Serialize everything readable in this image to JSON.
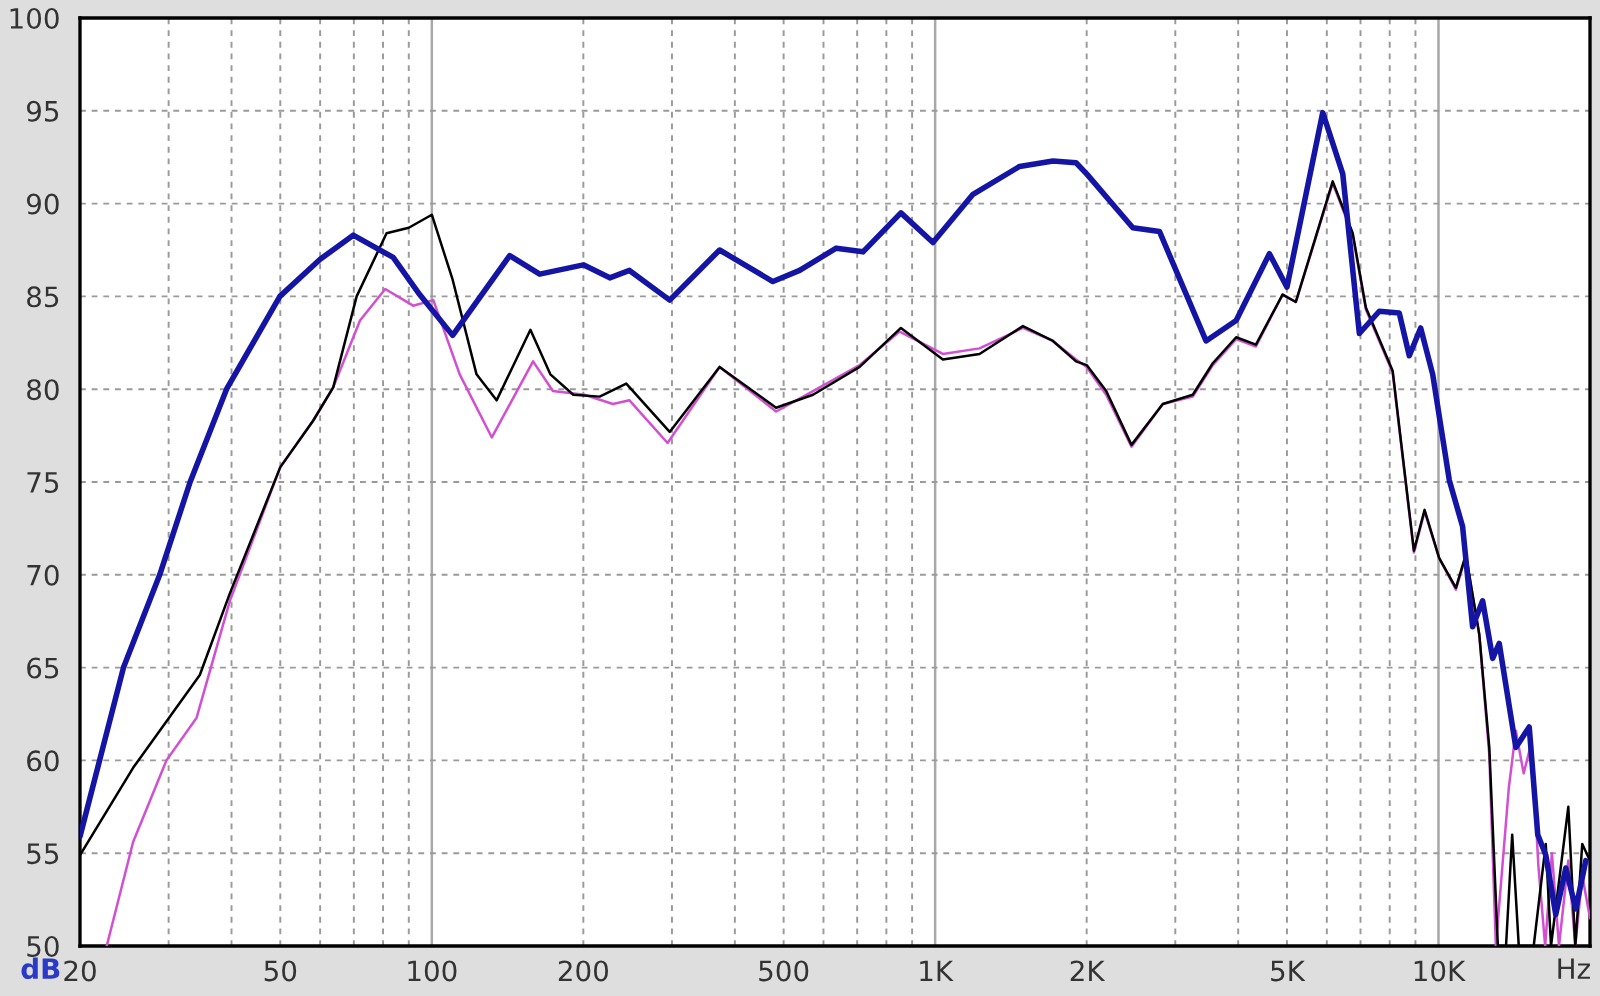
{
  "chart_data": {
    "type": "line",
    "xlabel": "Hz",
    "ylabel": "dB",
    "log": "x",
    "grid": true,
    "xlim": [
      20,
      20000
    ],
    "ylim": [
      50,
      100
    ],
    "xticks": [
      20,
      {
        "value": 30,
        "label": null
      },
      {
        "value": 40,
        "label": null
      },
      50,
      {
        "value": 60,
        "label": null
      },
      {
        "value": 70,
        "label": null
      },
      {
        "value": 80,
        "label": null
      },
      {
        "value": 90,
        "label": null
      },
      100,
      200,
      {
        "value": 300,
        "label": null
      },
      {
        "value": 400,
        "label": null
      },
      500,
      {
        "value": 600,
        "label": null
      },
      {
        "value": 700,
        "label": null
      },
      {
        "value": 800,
        "label": null
      },
      {
        "value": 900,
        "label": null
      },
      {
        "value": 1000,
        "label": "1K"
      },
      {
        "value": 2000,
        "label": "2K"
      },
      {
        "value": 3000,
        "label": null
      },
      {
        "value": 4000,
        "label": null
      },
      {
        "value": 5000,
        "label": "5K"
      },
      {
        "value": 6000,
        "label": null
      },
      {
        "value": 7000,
        "label": null
      },
      {
        "value": 8000,
        "label": null
      },
      {
        "value": 9000,
        "label": null
      },
      {
        "value": 10000,
        "label": "10K"
      }
    ],
    "yticks": [
      50,
      55,
      60,
      65,
      70,
      75,
      80,
      85,
      90,
      95,
      100
    ],
    "series": [
      {
        "color": "#d24fd2",
        "x": [
          22.6,
          25.5,
          29.7,
          34.1,
          39.7,
          50,
          58.1,
          63.7,
          72,
          80.8,
          91.8,
          100.7,
          113.6,
          131.6,
          158.9,
          174,
          201,
          229,
          247,
          294,
          373,
          483,
          572,
          708,
          850,
          1036,
          1225,
          1494,
          1714,
          1905,
          2000,
          2187,
          2455,
          2833,
          3250,
          3561,
          3963,
          4338,
          4901,
          5207,
          6164,
          6755,
          7173,
          8108,
          8937,
          9384,
          10032,
          10830,
          11335,
          12050,
          12617,
          13002,
          13793,
          14247,
          14764,
          15316,
          15795,
          16292,
          16801,
          17355,
          18111,
          18700,
          19305,
          20000
        ],
        "values": [
          50,
          55.6,
          60.0,
          62.3,
          68.6,
          75.8,
          78.3,
          80.1,
          83.7,
          85.4,
          84.5,
          84.8,
          80.8,
          77.4,
          81.5,
          79.9,
          79.7,
          79.2,
          79.4,
          77.1,
          81.2,
          78.8,
          79.9,
          81.3,
          83.1,
          81.9,
          82.2,
          83.3,
          82.6,
          81.6,
          81.2,
          79.7,
          76.9,
          79.2,
          79.6,
          81.3,
          82.7,
          82.3,
          85.1,
          84.7,
          91.1,
          88.3,
          84.3,
          80.9,
          71.2,
          73.4,
          70.9,
          69.2,
          71.0,
          66.8,
          60.3,
          50,
          58.5,
          61.6,
          59.3,
          61.0,
          54.3,
          50,
          55.0,
          50,
          54.6,
          50,
          53.8,
          51.5
        ]
      },
      {
        "color": "#000000",
        "x": [
          20,
          25.5,
          34.6,
          39.7,
          50,
          58.1,
          63.7,
          70.9,
          81.3,
          90,
          100,
          110,
          122.7,
          134.5,
          157,
          172,
          191,
          215.5,
          243.4,
          296.9,
          373,
          483,
          572,
          708,
          855,
          1036,
          1225,
          1494,
          1714,
          1905,
          2000,
          2187,
          2455,
          2833,
          3250,
          3561,
          3963,
          4338,
          4901,
          5207,
          6164,
          6755,
          7173,
          8108,
          8937,
          9384,
          10032,
          10830,
          11335,
          12050,
          12617,
          13122,
          13620,
          14011,
          14439,
          15459,
          16336,
          16733,
          18111,
          18700,
          19305,
          20000
        ],
        "values": [
          54.9,
          59.6,
          64.6,
          69.0,
          75.8,
          78.3,
          80.1,
          85.0,
          88.4,
          88.7,
          89.4,
          85.9,
          80.8,
          79.4,
          83.2,
          80.8,
          79.7,
          79.6,
          80.3,
          77.7,
          81.2,
          79.0,
          79.7,
          81.2,
          83.3,
          81.6,
          81.9,
          83.4,
          82.6,
          81.5,
          81.3,
          79.9,
          77.0,
          79.2,
          79.7,
          81.4,
          82.8,
          82.4,
          85.1,
          84.7,
          91.2,
          88.4,
          84.4,
          81.0,
          71.3,
          73.5,
          70.9,
          69.3,
          71.1,
          66.8,
          60.7,
          50,
          50,
          56.0,
          50,
          50,
          55.5,
          50,
          57.5,
          50,
          55.5,
          54.6
        ]
      },
      {
        "color": "#1515a5",
        "x": [
          20,
          24.4,
          28.8,
          33.1,
          39.1,
          49.9,
          60,
          69.8,
          83.8,
          94.6,
          110,
          142.8,
          163.8,
          200,
          225.7,
          247,
          296.9,
          373,
          476,
          538,
          636,
          719,
          855,
          990,
          1189,
          1471,
          1714,
          1905,
          2000,
          2470,
          2790,
          3453,
          3963,
          4614,
          5000,
          5889,
          6454,
          6963,
          7628,
          8358,
          8750,
          9217,
          9739,
          10507,
          11166,
          11690,
          12237,
          12812,
          13204,
          14245,
          15145,
          15748,
          16336,
          17102,
          17903,
          18743,
          19617
        ],
        "values": [
          55.9,
          65.0,
          70.0,
          75.0,
          80.0,
          85.0,
          87.0,
          88.3,
          87.1,
          85.1,
          82.9,
          87.2,
          86.2,
          86.7,
          86.0,
          86.4,
          84.8,
          87.5,
          85.8,
          86.4,
          87.6,
          87.4,
          89.5,
          87.9,
          90.5,
          92.0,
          92.3,
          92.2,
          91.6,
          88.7,
          88.5,
          82.6,
          83.7,
          87.3,
          85.5,
          94.9,
          91.6,
          83.0,
          84.2,
          84.1,
          81.8,
          83.3,
          80.8,
          75.1,
          72.6,
          67.2,
          68.6,
          65.5,
          66.3,
          60.7,
          61.8,
          56.0,
          54.9,
          51.7,
          54.2,
          52.0,
          54.6
        ]
      }
    ]
  }
}
